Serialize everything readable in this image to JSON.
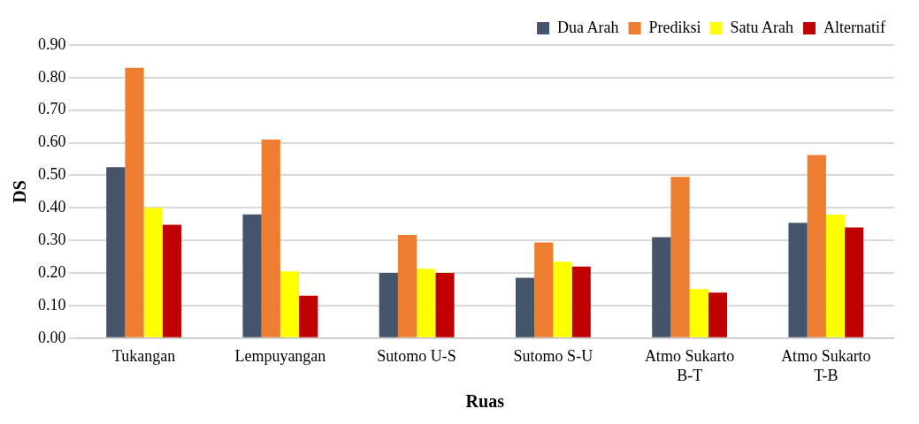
{
  "chart_data": {
    "type": "bar",
    "xlabel": "Ruas",
    "ylabel": "DS",
    "categories": [
      "Tukangan",
      "Lempuyangan",
      "Sutomo U-S",
      "Sutomo S-U",
      "Atmo Sukarto B-T",
      "Atmo Sukarto T-B"
    ],
    "series": [
      {
        "name": "Dua Arah",
        "color": "#44546a",
        "values": [
          0.525,
          0.38,
          0.2,
          0.185,
          0.31,
          0.354
        ]
      },
      {
        "name": "Prediksi",
        "color": "#ed7d31",
        "values": [
          0.83,
          0.61,
          0.317,
          0.294,
          0.495,
          0.562
        ]
      },
      {
        "name": "Satu Arah",
        "color": "#ffff00",
        "values": [
          0.4,
          0.205,
          0.213,
          0.235,
          0.151,
          0.379
        ]
      },
      {
        "name": "Alternatif",
        "color": "#c00000",
        "values": [
          0.348,
          0.13,
          0.2,
          0.22,
          0.14,
          0.34
        ]
      }
    ],
    "ylim": [
      0,
      0.9
    ],
    "yticks": [
      {
        "value": 0,
        "label": "0.00"
      },
      {
        "value": 0.1,
        "label": "0.10"
      },
      {
        "value": 0.2,
        "label": "0.20"
      },
      {
        "value": 0.3,
        "label": "0.30"
      },
      {
        "value": 0.4,
        "label": "0.40"
      },
      {
        "value": 0.5,
        "label": "0.50"
      },
      {
        "value": 0.6,
        "label": "0.60"
      },
      {
        "value": 0.7,
        "label": "0.70"
      },
      {
        "value": 0.8,
        "label": "0.80"
      },
      {
        "value": 0.9,
        "label": "0.90"
      }
    ],
    "grid": "y",
    "legend": "top right"
  }
}
